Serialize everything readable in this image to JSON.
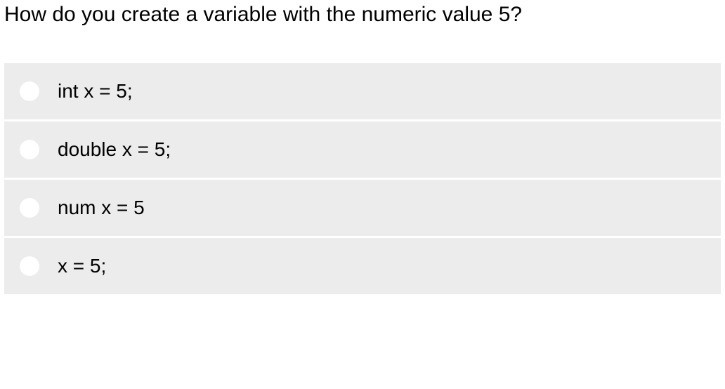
{
  "question": {
    "text": "How do you create a variable with the numeric value 5?",
    "text_fontsize": 30,
    "text_color": "#000000"
  },
  "options": [
    {
      "label": "int x = 5;"
    },
    {
      "label": "double x = 5;"
    },
    {
      "label": "num x = 5"
    },
    {
      "label": "x = 5;"
    }
  ],
  "styling": {
    "option_background": "#ececec",
    "radio_fill": "#ffffff",
    "option_fontsize": 28,
    "option_gap": 3,
    "page_background": "#ffffff"
  }
}
